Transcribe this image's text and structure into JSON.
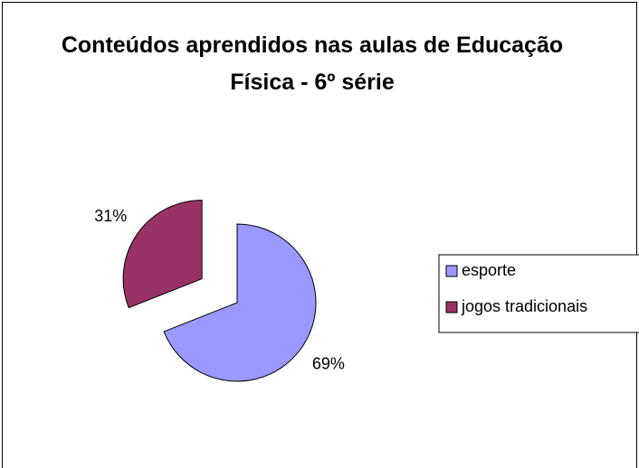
{
  "chart_data": {
    "type": "pie",
    "title": "Conteúdos aprendidos nas aulas de Educação Física - 6º série",
    "categories": [
      "esporte",
      "jogos tradicionais"
    ],
    "values": [
      69,
      31
    ],
    "value_labels": [
      "69%",
      "31%"
    ],
    "colors": [
      "#9999ff",
      "#993366"
    ],
    "legend": "right"
  }
}
